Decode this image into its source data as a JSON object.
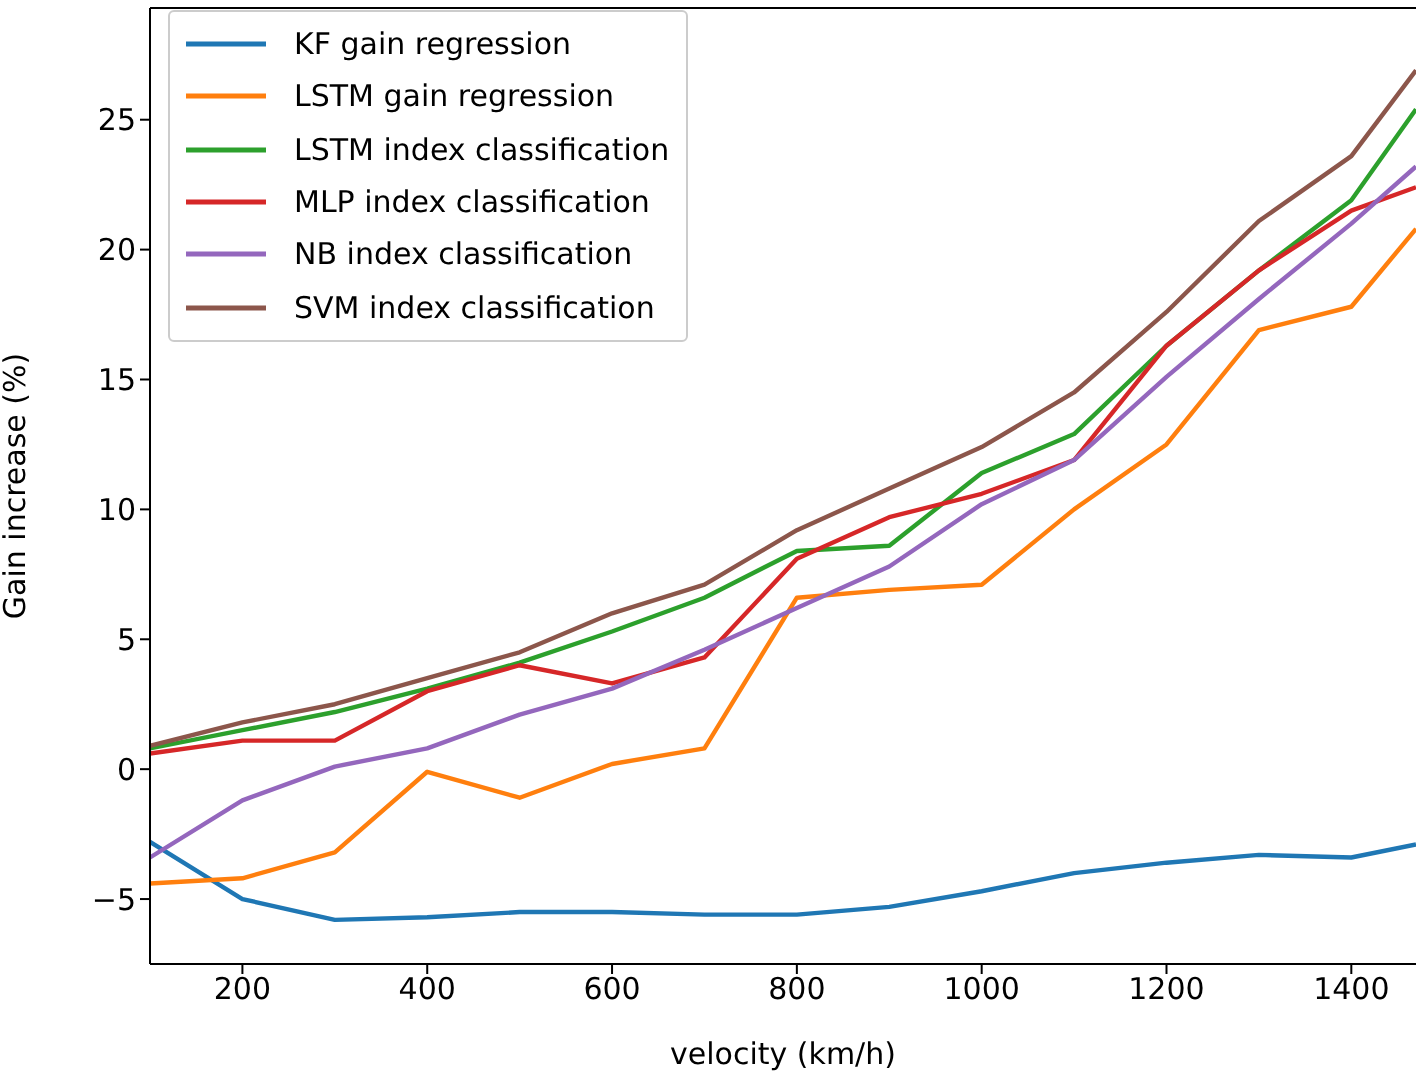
{
  "chart_data": {
    "type": "line",
    "xlabel": "velocity (km/h)",
    "ylabel": "Gain increase (%)",
    "x": [
      100,
      200,
      300,
      400,
      500,
      600,
      700,
      800,
      900,
      1000,
      1100,
      1200,
      1300,
      1400,
      1470
    ],
    "series": [
      {
        "name": "KF gain regression",
        "color": "#1f77b4",
        "values": [
          -2.8,
          -5.0,
          -5.8,
          -5.7,
          -5.5,
          -5.5,
          -5.6,
          -5.6,
          -5.3,
          -4.7,
          -4.0,
          -3.6,
          -3.3,
          -3.4,
          -2.9
        ]
      },
      {
        "name": "LSTM gain regression",
        "color": "#ff7f0e",
        "values": [
          -4.4,
          -4.2,
          -3.2,
          -0.1,
          -1.1,
          0.2,
          0.8,
          6.6,
          6.9,
          7.1,
          10.0,
          12.5,
          16.9,
          17.8,
          20.8
        ]
      },
      {
        "name": "LSTM index classification",
        "color": "#2ca02c",
        "values": [
          0.8,
          1.5,
          2.2,
          3.1,
          4.1,
          5.3,
          6.6,
          8.4,
          8.6,
          11.4,
          12.9,
          16.3,
          19.2,
          21.9,
          25.4
        ]
      },
      {
        "name": "MLP index classification",
        "color": "#d62728",
        "values": [
          0.6,
          1.1,
          1.1,
          3.0,
          4.0,
          3.3,
          4.3,
          8.1,
          9.7,
          10.6,
          11.9,
          16.3,
          19.2,
          21.5,
          22.4
        ]
      },
      {
        "name": "NB index classification",
        "color": "#9467bd",
        "values": [
          -3.4,
          -1.2,
          0.1,
          0.8,
          2.1,
          3.1,
          4.6,
          6.2,
          7.8,
          10.2,
          11.9,
          15.1,
          18.1,
          21.0,
          23.2
        ]
      },
      {
        "name": "SVM index classification",
        "color": "#8c564b",
        "values": [
          0.9,
          1.8,
          2.5,
          3.5,
          4.5,
          6.0,
          7.1,
          9.2,
          10.8,
          12.4,
          14.5,
          17.6,
          21.1,
          23.6,
          26.9
        ]
      }
    ],
    "xlim": [
      100,
      1470
    ],
    "ylim": [
      -7.5,
      29.3
    ],
    "xticks": [
      200,
      400,
      600,
      800,
      1000,
      1200,
      1400
    ],
    "yticks": [
      -5,
      0,
      5,
      10,
      15,
      20,
      25
    ],
    "legend": "top left",
    "grid": false,
    "marker": "none",
    "line_style": "solid"
  }
}
